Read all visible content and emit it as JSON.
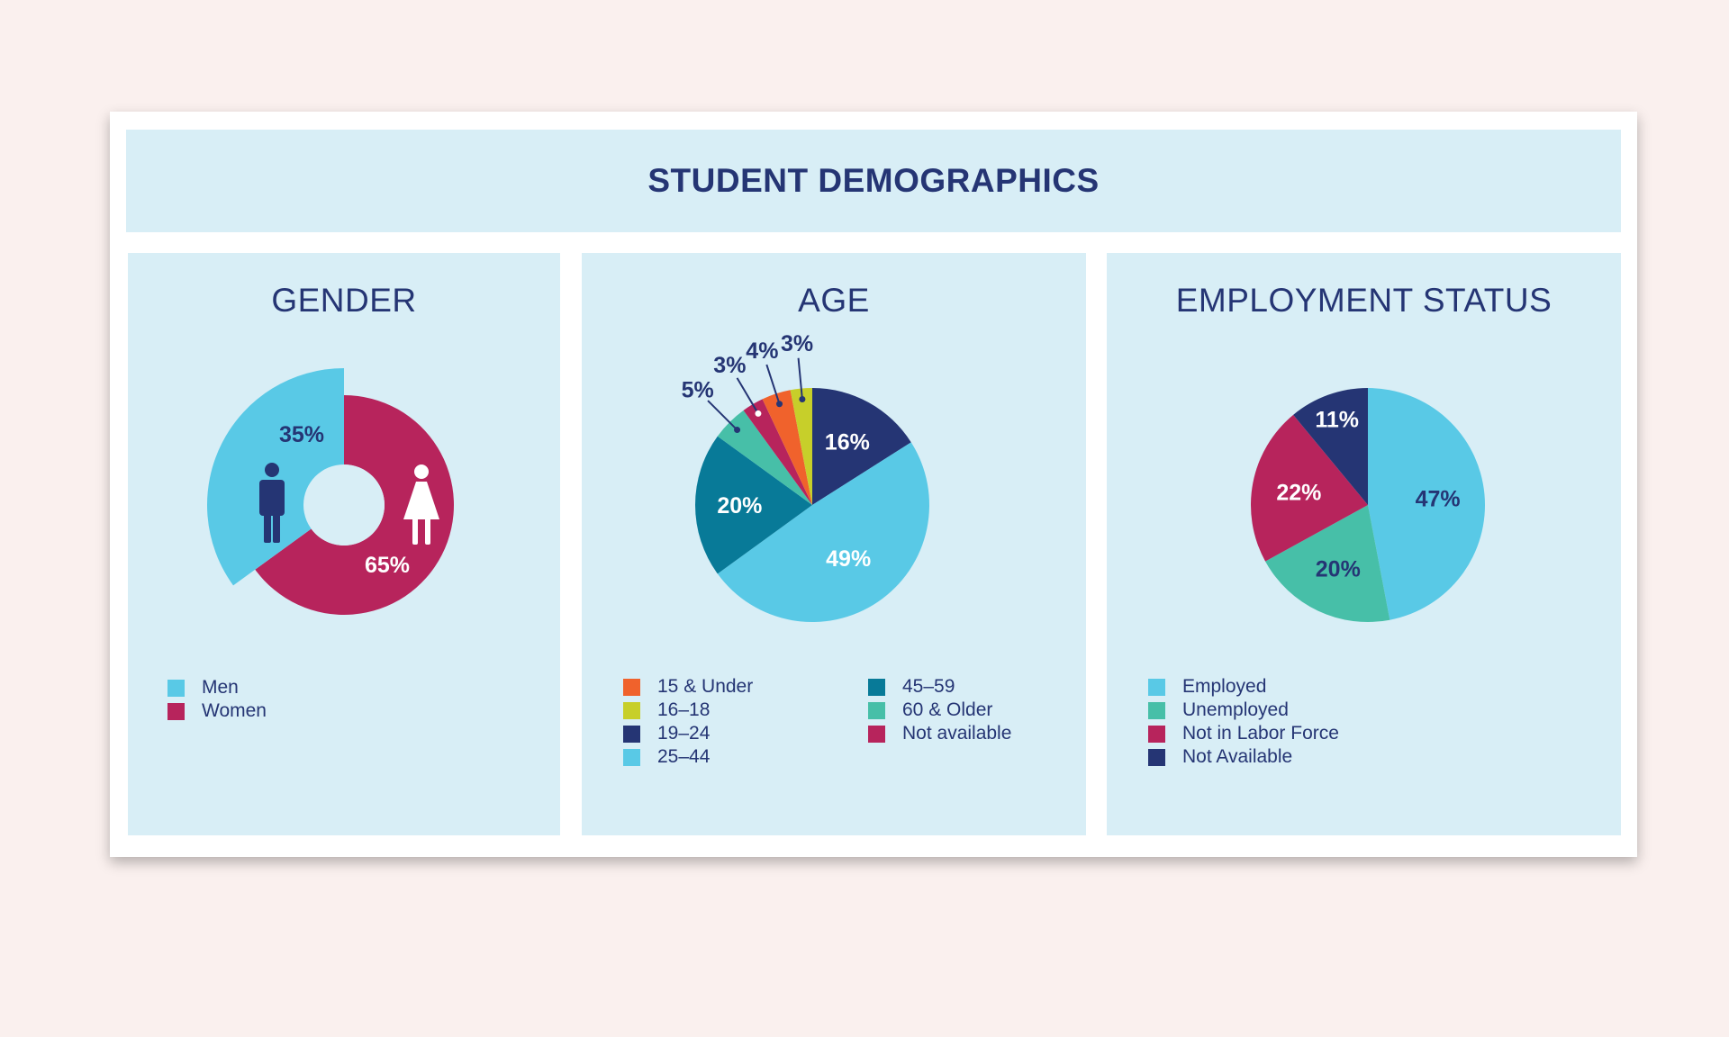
{
  "title": "STUDENT DEMOGRAPHICS",
  "colors": {
    "cyan": "#59c9e6",
    "magenta": "#b7245c",
    "navy": "#253574",
    "orange": "#f0622c",
    "lime": "#c7cf2a",
    "teal": "#087a98",
    "green": "#47bfa8",
    "panel_bg": "#d8eef6"
  },
  "chart_data": [
    {
      "type": "pie",
      "title": "GENDER",
      "style": "donut, men slice exploded",
      "slices": [
        {
          "name": "Men",
          "value": 35,
          "label": "35%",
          "color": "#59c9e6",
          "icon": "man-icon"
        },
        {
          "name": "Women",
          "value": 65,
          "label": "65%",
          "color": "#b7245c",
          "icon": "woman-icon"
        }
      ],
      "legend": [
        "Men",
        "Women"
      ]
    },
    {
      "type": "pie",
      "title": "AGE",
      "slices": [
        {
          "name": "19–24",
          "value": 16,
          "label": "16%",
          "color": "#253574"
        },
        {
          "name": "25–44",
          "value": 49,
          "label": "49%",
          "color": "#59c9e6"
        },
        {
          "name": "45–59",
          "value": 20,
          "label": "20%",
          "color": "#087a98"
        },
        {
          "name": "60 & Older",
          "value": 5,
          "label": "5%",
          "color": "#47bfa8"
        },
        {
          "name": "Not available",
          "value": 3,
          "label": "3%",
          "color": "#b7245c"
        },
        {
          "name": "15 & Under",
          "value": 4,
          "label": "4%",
          "color": "#f0622c"
        },
        {
          "name": "16–18",
          "value": 3,
          "label": "3%",
          "color": "#c7cf2a"
        }
      ],
      "legend": [
        "15 & Under",
        "16–18",
        "19–24",
        "25–44",
        "45–59",
        "60 & Older",
        "Not available"
      ]
    },
    {
      "type": "pie",
      "title": "EMPLOYMENT STATUS",
      "slices": [
        {
          "name": "Employed",
          "value": 47,
          "label": "47%",
          "color": "#59c9e6"
        },
        {
          "name": "Unemployed",
          "value": 20,
          "label": "20%",
          "color": "#47bfa8"
        },
        {
          "name": "Not in Labor Force",
          "value": 22,
          "label": "22%",
          "color": "#b7245c"
        },
        {
          "name": "Not Available",
          "value": 11,
          "label": "11%",
          "color": "#253574"
        }
      ],
      "legend": [
        "Employed",
        "Unemployed",
        "Not in Labor Force",
        "Not Available"
      ]
    }
  ]
}
